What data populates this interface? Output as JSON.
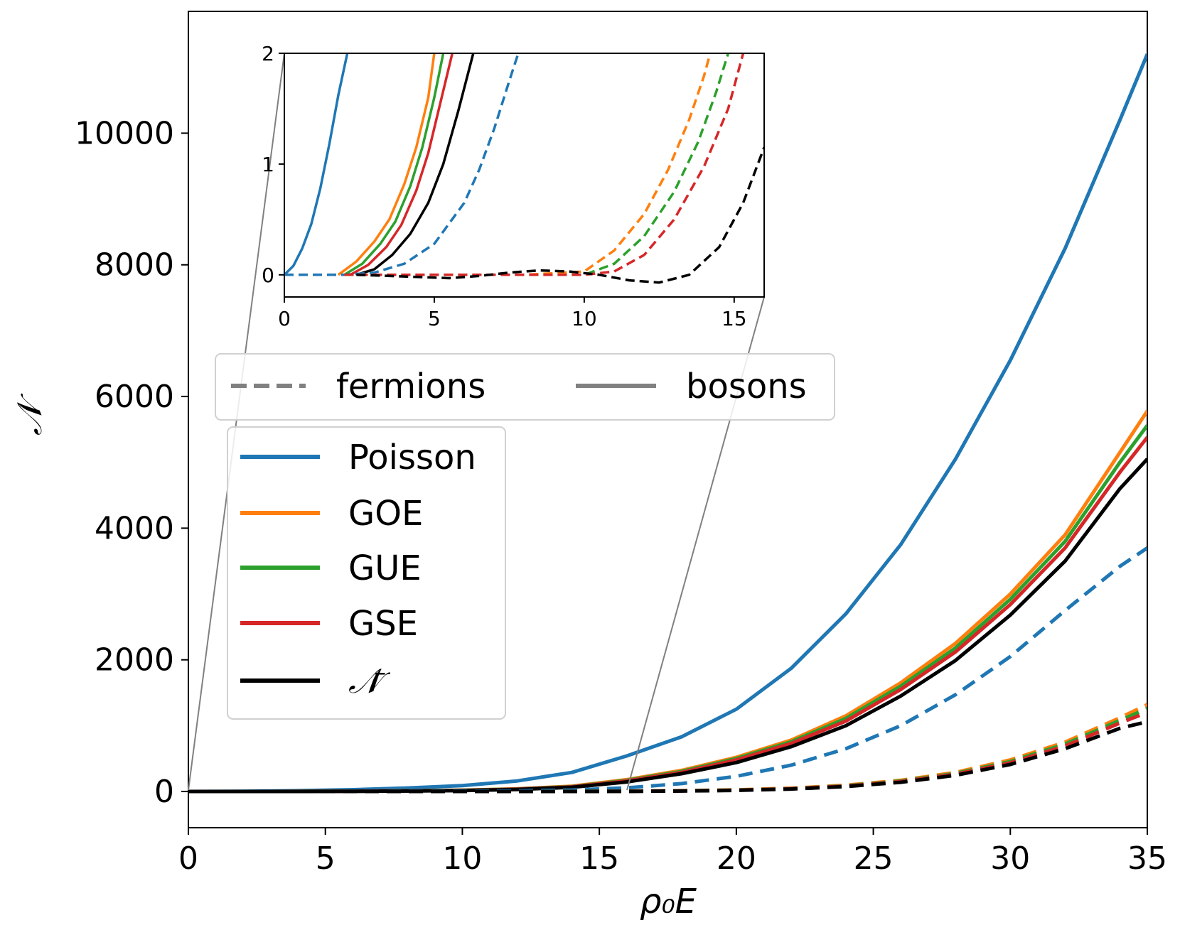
{
  "chart_data": {
    "type": "line",
    "xlabel": "ρ₀E",
    "ylabel": "𝒩",
    "xlim": [
      0,
      35
    ],
    "ylim": [
      -550,
      11850
    ],
    "x_ticks": [
      "0",
      "5",
      "10",
      "15",
      "20",
      "25",
      "30",
      "35"
    ],
    "y_ticks": [
      "0",
      "2000",
      "4000",
      "6000",
      "8000",
      "10000"
    ],
    "colors": {
      "Poisson": "#1f77b4",
      "GOE": "#ff7f0e",
      "GUE": "#2ca02c",
      "GSE": "#d62728",
      "mean": "#000000",
      "style_legend": "#808080"
    },
    "series": [
      {
        "name": "Poisson bosons",
        "color_key": "Poisson",
        "style": "solid",
        "x": [
          0,
          2,
          4,
          6,
          8,
          10,
          12,
          14,
          16,
          18,
          20,
          22,
          24,
          26,
          28,
          30,
          32,
          34,
          35
        ],
        "values": [
          0,
          3,
          12,
          27,
          53,
          90,
          160,
          290,
          540,
          830,
          1250,
          1870,
          2700,
          3750,
          5050,
          6550,
          8250,
          10200,
          11200
        ]
      },
      {
        "name": "GOE bosons",
        "color_key": "GOE",
        "style": "solid",
        "x": [
          0,
          2,
          4,
          6,
          8,
          10,
          12,
          14,
          16,
          18,
          20,
          22,
          24,
          26,
          28,
          30,
          32,
          34,
          35
        ],
        "values": [
          0,
          0.2,
          2,
          5,
          10,
          20,
          40,
          80,
          180,
          320,
          520,
          780,
          1150,
          1650,
          2250,
          3000,
          3900,
          5150,
          5780
        ]
      },
      {
        "name": "GUE bosons",
        "color_key": "GUE",
        "style": "solid",
        "x": [
          0,
          2,
          4,
          6,
          8,
          10,
          12,
          14,
          16,
          18,
          20,
          22,
          24,
          26,
          28,
          30,
          32,
          34,
          35
        ],
        "values": [
          0,
          0.1,
          1.6,
          4,
          9,
          18,
          38,
          75,
          170,
          305,
          500,
          755,
          1110,
          1600,
          2180,
          2920,
          3800,
          5000,
          5560
        ]
      },
      {
        "name": "GSE bosons",
        "color_key": "GSE",
        "style": "solid",
        "x": [
          0,
          2,
          4,
          6,
          8,
          10,
          12,
          14,
          16,
          18,
          20,
          22,
          24,
          26,
          28,
          30,
          32,
          34,
          35
        ],
        "values": [
          0,
          0,
          1.2,
          3.5,
          8,
          16,
          35,
          70,
          160,
          290,
          480,
          730,
          1070,
          1550,
          2120,
          2840,
          3700,
          4850,
          5380
        ]
      },
      {
        "name": "𝒩̄ bosons",
        "color_key": "mean",
        "style": "solid",
        "x": [
          0,
          2,
          4,
          6,
          8,
          10,
          12,
          14,
          16,
          18,
          20,
          22,
          24,
          26,
          28,
          30,
          32,
          34,
          35
        ],
        "values": [
          0,
          0,
          0.6,
          2.8,
          7,
          14,
          31,
          64,
          145,
          270,
          440,
          680,
          1000,
          1450,
          1990,
          2680,
          3500,
          4600,
          5050
        ]
      },
      {
        "name": "Poisson fermions",
        "color_key": "Poisson",
        "style": "dashed",
        "x": [
          0,
          2,
          4,
          6,
          8,
          10,
          12,
          14,
          16,
          18,
          20,
          22,
          24,
          26,
          28,
          30,
          32,
          34,
          35
        ],
        "values": [
          0,
          0.1,
          0.6,
          1.6,
          2.8,
          5,
          10,
          22,
          55,
          120,
          230,
          400,
          650,
          1000,
          1470,
          2050,
          2750,
          3420,
          3700
        ]
      },
      {
        "name": "GOE fermions",
        "color_key": "GOE",
        "style": "dashed",
        "x": [
          0,
          2,
          4,
          6,
          8,
          10,
          12,
          14,
          16,
          18,
          20,
          22,
          24,
          26,
          28,
          30,
          32,
          34,
          35
        ],
        "values": [
          0,
          0,
          0,
          0,
          0,
          0.05,
          0.5,
          1.6,
          5,
          12,
          25,
          50,
          95,
          170,
          290,
          480,
          750,
          1120,
          1320
        ]
      },
      {
        "name": "GUE fermions",
        "color_key": "GUE",
        "style": "dashed",
        "x": [
          0,
          2,
          4,
          6,
          8,
          10,
          12,
          14,
          16,
          18,
          20,
          22,
          24,
          26,
          28,
          30,
          32,
          34,
          35
        ],
        "values": [
          0,
          0,
          0,
          0,
          0,
          0.03,
          0.3,
          1.2,
          4,
          10,
          22,
          45,
          88,
          160,
          275,
          455,
          720,
          1080,
          1260
        ]
      },
      {
        "name": "GSE fermions",
        "color_key": "GSE",
        "style": "dashed",
        "x": [
          0,
          2,
          4,
          6,
          8,
          10,
          12,
          14,
          16,
          18,
          20,
          22,
          24,
          26,
          28,
          30,
          32,
          34,
          35
        ],
        "values": [
          0,
          0,
          0,
          0,
          0,
          0.02,
          0.1,
          0.8,
          3,
          9,
          20,
          42,
          82,
          150,
          262,
          435,
          690,
          1040,
          1200
        ]
      },
      {
        "name": "𝒩̄ fermions",
        "color_key": "mean",
        "style": "dashed",
        "x": [
          0,
          2,
          4,
          6,
          8,
          10,
          12,
          14,
          16,
          18,
          20,
          22,
          24,
          26,
          28,
          30,
          32,
          34,
          35
        ],
        "values": [
          0,
          0,
          -0.01,
          -0.02,
          0.02,
          0.03,
          -0.05,
          0,
          1.4,
          7,
          17,
          37,
          75,
          140,
          245,
          410,
          650,
          960,
          1060
        ]
      }
    ],
    "inset": {
      "xlim": [
        0,
        16
      ],
      "ylim": [
        -0.2,
        2
      ],
      "x_ticks": [
        "0",
        "5",
        "10",
        "15"
      ],
      "y_ticks": [
        "0",
        "1",
        "2"
      ],
      "series": [
        {
          "name": "Poisson bosons",
          "color_key": "Poisson",
          "style": "solid",
          "x": [
            0,
            0.3,
            0.6,
            0.9,
            1.2,
            1.5,
            1.8,
            2.1
          ],
          "values": [
            0,
            0.08,
            0.24,
            0.46,
            0.78,
            1.18,
            1.62,
            2.0
          ]
        },
        {
          "name": "GOE bosons",
          "color_key": "GOE",
          "style": "solid",
          "x": [
            1.8,
            2.4,
            3.0,
            3.5,
            4.0,
            4.4,
            4.8,
            5.0
          ],
          "values": [
            0,
            0.12,
            0.3,
            0.5,
            0.82,
            1.15,
            1.6,
            2.0
          ]
        },
        {
          "name": "GUE bosons",
          "color_key": "GUE",
          "style": "solid",
          "x": [
            2.0,
            2.6,
            3.2,
            3.7,
            4.2,
            4.6,
            5.0,
            5.3
          ],
          "values": [
            0,
            0.1,
            0.28,
            0.48,
            0.8,
            1.15,
            1.6,
            2.0
          ]
        },
        {
          "name": "GSE bosons",
          "color_key": "GSE",
          "style": "solid",
          "x": [
            2.2,
            2.8,
            3.4,
            3.9,
            4.4,
            4.8,
            5.2,
            5.6
          ],
          "values": [
            0,
            0.09,
            0.25,
            0.45,
            0.76,
            1.1,
            1.55,
            2.0
          ]
        },
        {
          "name": "𝒩̄ bosons",
          "color_key": "mean",
          "style": "solid",
          "x": [
            2.4,
            3.0,
            3.6,
            4.2,
            4.8,
            5.3,
            5.8,
            6.3
          ],
          "values": [
            0,
            0.05,
            0.18,
            0.37,
            0.65,
            1.0,
            1.48,
            2.0
          ]
        },
        {
          "name": "Poisson fermions",
          "color_key": "Poisson",
          "style": "dashed",
          "x": [
            0,
            1,
            2,
            3,
            4,
            5,
            6,
            6.5,
            7,
            7.5,
            7.8
          ],
          "values": [
            0,
            0,
            0,
            0.02,
            0.1,
            0.28,
            0.65,
            0.95,
            1.32,
            1.75,
            2.0
          ]
        },
        {
          "name": "GOE fermions",
          "color_key": "GOE",
          "style": "dashed",
          "x": [
            2,
            4,
            6,
            8,
            10,
            11,
            12,
            12.8,
            13.5,
            14.0,
            14.2
          ],
          "values": [
            0,
            0,
            0,
            0,
            0.03,
            0.22,
            0.55,
            0.95,
            1.4,
            1.8,
            2.0
          ]
        },
        {
          "name": "GUE fermions",
          "color_key": "GUE",
          "style": "dashed",
          "x": [
            2,
            4,
            6,
            8,
            10,
            11,
            12,
            13,
            13.8,
            14.4,
            14.8
          ],
          "values": [
            0,
            0,
            0,
            0,
            0,
            0.1,
            0.35,
            0.75,
            1.2,
            1.65,
            2.0
          ]
        },
        {
          "name": "GSE fermions",
          "color_key": "GSE",
          "style": "dashed",
          "x": [
            2,
            4,
            6,
            8,
            10,
            11,
            12,
            13,
            14,
            14.8,
            15.3
          ],
          "values": [
            0,
            0,
            0,
            0,
            0,
            0.03,
            0.18,
            0.5,
            0.98,
            1.5,
            2.0
          ]
        },
        {
          "name": "𝒩̄ fermions",
          "color_key": "mean",
          "style": "dashed",
          "x": [
            2.4,
            3.5,
            4.5,
            5.5,
            6.5,
            7.5,
            8.5,
            9.5,
            10.5,
            11.5,
            12.5,
            13.5,
            14.5,
            15.3,
            16.0
          ],
          "values": [
            0,
            -0.01,
            -0.02,
            -0.03,
            -0.01,
            0.02,
            0.04,
            0.03,
            0.0,
            -0.05,
            -0.07,
            0.0,
            0.25,
            0.65,
            1.15
          ]
        }
      ]
    },
    "legend_style": {
      "position": "upper-center",
      "entries": [
        "fermions",
        "bosons"
      ]
    },
    "legend_ensemble": {
      "position": "center-left",
      "entries": [
        "Poisson",
        "GOE",
        "GUE",
        "GSE",
        "𝒩̄"
      ]
    }
  }
}
